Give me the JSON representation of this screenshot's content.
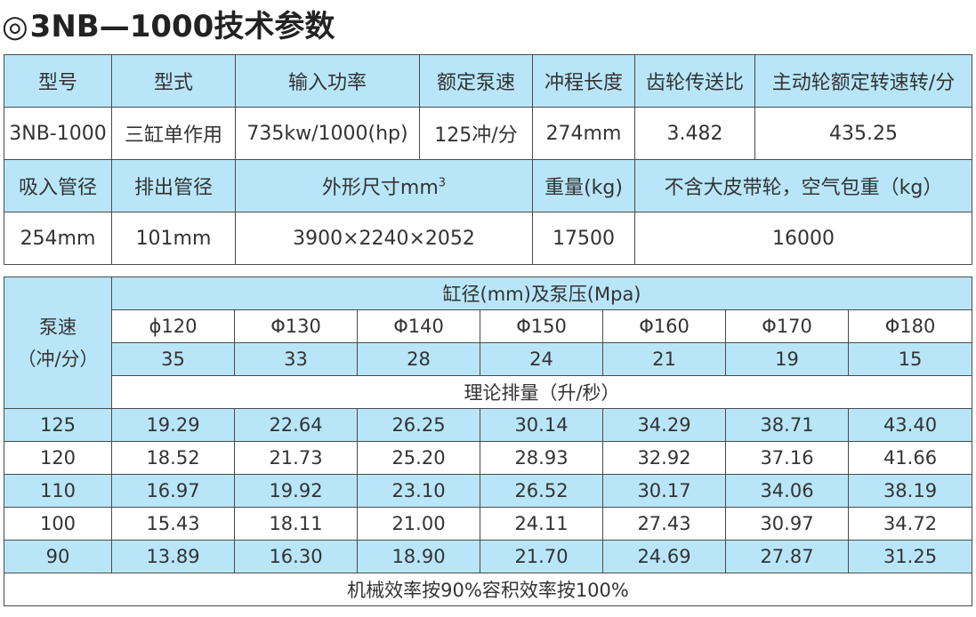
{
  "title": {
    "mark": "◎",
    "text": "3NB—1000技术参数"
  },
  "specs": {
    "row1_headers": [
      "型号",
      "型式",
      "输入功率",
      "额定泵速",
      "冲程长度",
      "齿轮传送比",
      "主动轮额定转速转/分"
    ],
    "row1_values": [
      "3NB-1000",
      "三缸单作用",
      "735kw/1000(hp)",
      "125冲/分",
      "274mm",
      "3.482",
      "435.25"
    ],
    "row2_headers": {
      "suction": "吸入管径",
      "discharge": "排出管径",
      "size": "外形尺寸mm",
      "size_sup": "3",
      "weight": "重量(kg)",
      "weight_no_pulley": "不含大皮带轮，空气包重（kg）"
    },
    "row2_values": [
      "254mm",
      "101mm",
      "3900×2240×2052",
      "17500",
      "16000"
    ]
  },
  "flow": {
    "pump_speed_label_line1": "泵速",
    "pump_speed_label_line2": "（冲/分）",
    "bore_header": "缸径(mm)及泵压(Mpa)",
    "diameters": [
      "ɸ120",
      "Φ130",
      "Φ140",
      "Φ150",
      "Φ160",
      "Φ170",
      "Φ180"
    ],
    "pressures": [
      "35",
      "33",
      "28",
      "24",
      "21",
      "19",
      "15"
    ],
    "displacement_header": "理论排量（升/秒）",
    "rows": [
      {
        "speed": "125",
        "values": [
          "19.29",
          "22.64",
          "26.25",
          "30.14",
          "34.29",
          "38.71",
          "43.40"
        ]
      },
      {
        "speed": "120",
        "values": [
          "18.52",
          "21.73",
          "25.20",
          "28.93",
          "32.92",
          "37.16",
          "41.66"
        ]
      },
      {
        "speed": "110",
        "values": [
          "16.97",
          "19.92",
          "23.10",
          "26.52",
          "30.17",
          "34.06",
          "38.19"
        ]
      },
      {
        "speed": "100",
        "values": [
          "15.43",
          "18.11",
          "21.00",
          "24.11",
          "27.43",
          "30.97",
          "34.72"
        ]
      },
      {
        "speed": "90",
        "values": [
          "13.89",
          "16.30",
          "18.90",
          "21.70",
          "24.69",
          "27.87",
          "31.25"
        ]
      }
    ],
    "footnote": "机械效率按90%容积效率按100%"
  }
}
